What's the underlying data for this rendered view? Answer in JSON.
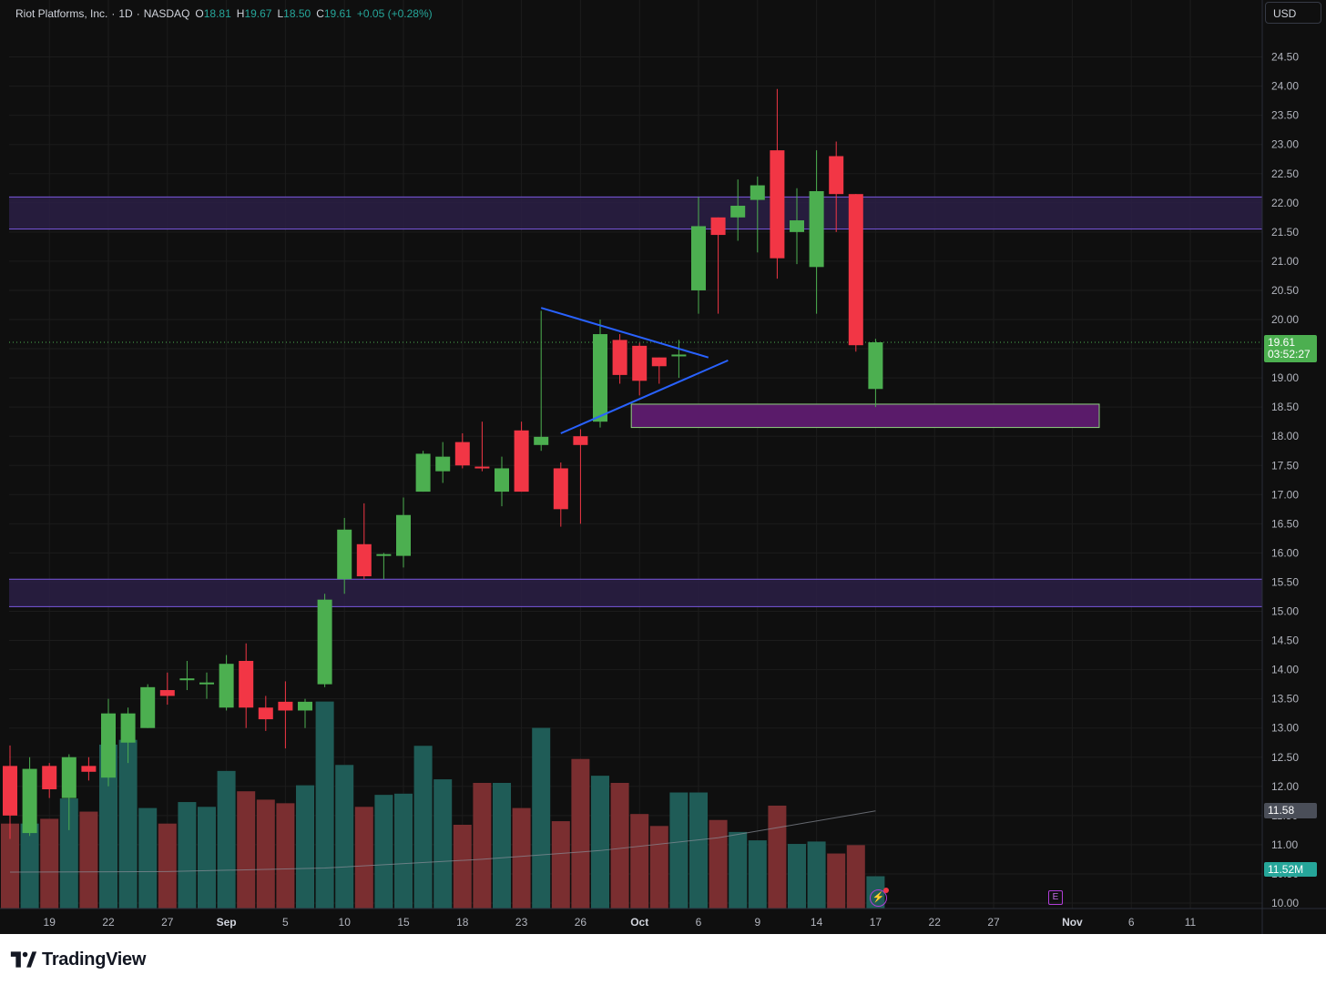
{
  "header": {
    "symbol": "Riot Platforms, Inc.",
    "interval": "1D",
    "exchange": "NASDAQ",
    "open_label": "O",
    "open": "18.81",
    "high_label": "H",
    "high": "19.67",
    "low_label": "L",
    "low": "18.50",
    "close_label": "C",
    "close": "19.61",
    "change": "+0.05 (+0.28%)"
  },
  "currency_button": "USD",
  "last_price_tag": {
    "price": "19.61",
    "countdown": "03:52:27"
  },
  "ma_tag": "11.58",
  "volume_tag": "11.52M",
  "events": {
    "earnings_icon": "E",
    "flash_icon": "lightning-icon"
  },
  "footer": {
    "brand": "TradingView",
    "logo_icon": "tradingview-logo-icon"
  },
  "colors": {
    "up_candle": "#4caf50",
    "down_candle": "#f23645",
    "up_volume": "#1f5c57",
    "down_volume": "#7a2e30",
    "zone_fill": "#2a1f45",
    "zone_line": "#7b58e0",
    "support_box": "#5a1b6a",
    "trendline": "#2962ff",
    "background": "#0f0f0f"
  },
  "chart_data": {
    "type": "candlestick",
    "title": "Riot Platforms, Inc. · 1D · NASDAQ",
    "y_axis": {
      "range": [
        10.0,
        25.0
      ],
      "ticks": [
        "10.00",
        "10.50",
        "11.00",
        "11.50",
        "12.00",
        "12.50",
        "13.00",
        "13.50",
        "14.00",
        "14.50",
        "15.00",
        "15.50",
        "16.00",
        "16.50",
        "17.00",
        "17.50",
        "18.00",
        "18.50",
        "19.00",
        "19.50",
        "20.00",
        "20.50",
        "21.00",
        "21.50",
        "22.00",
        "22.50",
        "23.00",
        "23.50",
        "24.00",
        "24.50"
      ]
    },
    "x_axis": {
      "ticks": [
        {
          "label": "19",
          "bold": false
        },
        {
          "label": "22",
          "bold": false
        },
        {
          "label": "27",
          "bold": false
        },
        {
          "label": "Sep",
          "bold": true
        },
        {
          "label": "5",
          "bold": false
        },
        {
          "label": "10",
          "bold": false
        },
        {
          "label": "15",
          "bold": false
        },
        {
          "label": "18",
          "bold": false
        },
        {
          "label": "23",
          "bold": false
        },
        {
          "label": "26",
          "bold": false
        },
        {
          "label": "Oct",
          "bold": true
        },
        {
          "label": "6",
          "bold": false
        },
        {
          "label": "9",
          "bold": false
        },
        {
          "label": "14",
          "bold": false
        },
        {
          "label": "17",
          "bold": false
        },
        {
          "label": "22",
          "bold": false
        },
        {
          "label": "27",
          "bold": false
        },
        {
          "label": "Nov",
          "bold": true
        },
        {
          "label": "6",
          "bold": false
        },
        {
          "label": "11",
          "bold": false
        }
      ]
    },
    "volume_scale_max": 17.5,
    "candles": [
      {
        "o": 12.35,
        "h": 12.7,
        "l": 11.1,
        "c": 11.5,
        "v": 7.1
      },
      {
        "o": 11.2,
        "h": 12.5,
        "l": 11.15,
        "c": 12.3,
        "v": 7.1
      },
      {
        "o": 12.35,
        "h": 12.4,
        "l": 11.8,
        "c": 11.95,
        "v": 7.5
      },
      {
        "o": 11.8,
        "h": 12.55,
        "l": 11.25,
        "c": 12.5,
        "v": 9.2
      },
      {
        "o": 12.35,
        "h": 12.5,
        "l": 12.1,
        "c": 12.25,
        "v": 8.1
      },
      {
        "o": 12.15,
        "h": 13.5,
        "l": 12.0,
        "c": 13.25,
        "v": 13.7
      },
      {
        "o": 12.75,
        "h": 13.35,
        "l": 12.4,
        "c": 13.25,
        "v": 14.1
      },
      {
        "o": 13.0,
        "h": 13.75,
        "l": 13.0,
        "c": 13.7,
        "v": 8.4
      },
      {
        "o": 13.65,
        "h": 13.95,
        "l": 13.4,
        "c": 13.55,
        "v": 7.1
      },
      {
        "o": 13.85,
        "h": 14.15,
        "l": 13.65,
        "c": 13.85,
        "v": 8.9
      },
      {
        "o": 13.75,
        "h": 13.95,
        "l": 13.5,
        "c": 13.78,
        "v": 8.5
      },
      {
        "o": 13.35,
        "h": 14.25,
        "l": 13.3,
        "c": 14.1,
        "v": 11.5
      },
      {
        "o": 14.15,
        "h": 14.45,
        "l": 13.0,
        "c": 13.35,
        "v": 9.8
      },
      {
        "o": 13.35,
        "h": 13.55,
        "l": 12.95,
        "c": 13.15,
        "v": 9.1
      },
      {
        "o": 13.45,
        "h": 13.8,
        "l": 12.65,
        "c": 13.3,
        "v": 8.8
      },
      {
        "o": 13.3,
        "h": 13.5,
        "l": 13.0,
        "c": 13.45,
        "v": 10.3
      },
      {
        "o": 13.75,
        "h": 15.3,
        "l": 13.7,
        "c": 15.2,
        "v": 17.3
      },
      {
        "o": 15.55,
        "h": 16.6,
        "l": 15.3,
        "c": 16.4,
        "v": 12.0
      },
      {
        "o": 16.15,
        "h": 16.85,
        "l": 15.55,
        "c": 15.6,
        "v": 8.5
      },
      {
        "o": 15.95,
        "h": 16.0,
        "l": 15.55,
        "c": 15.98,
        "v": 9.5
      },
      {
        "o": 15.95,
        "h": 16.95,
        "l": 15.75,
        "c": 16.65,
        "v": 9.6
      },
      {
        "o": 17.05,
        "h": 17.75,
        "l": 17.05,
        "c": 17.7,
        "v": 13.6
      },
      {
        "o": 17.4,
        "h": 17.9,
        "l": 17.2,
        "c": 17.65,
        "v": 10.8
      },
      {
        "o": 17.9,
        "h": 18.05,
        "l": 17.45,
        "c": 17.5,
        "v": 7.0
      },
      {
        "o": 17.48,
        "h": 18.25,
        "l": 17.4,
        "c": 17.45,
        "v": 10.5
      },
      {
        "o": 17.05,
        "h": 17.65,
        "l": 16.8,
        "c": 17.45,
        "v": 10.5
      },
      {
        "o": 18.1,
        "h": 18.25,
        "l": 17.05,
        "c": 17.05,
        "v": 8.4
      },
      {
        "o": 17.85,
        "h": 20.15,
        "l": 17.75,
        "c": 17.99,
        "v": 15.1
      },
      {
        "o": 17.45,
        "h": 17.55,
        "l": 16.45,
        "c": 16.75,
        "v": 7.3
      },
      {
        "o": 18.0,
        "h": 18.12,
        "l": 16.5,
        "c": 17.85,
        "v": 12.5
      },
      {
        "o": 18.25,
        "h": 20.0,
        "l": 18.15,
        "c": 19.75,
        "v": 11.1
      },
      {
        "o": 19.65,
        "h": 19.75,
        "l": 18.9,
        "c": 19.05,
        "v": 10.5
      },
      {
        "o": 19.55,
        "h": 19.6,
        "l": 18.7,
        "c": 18.95,
        "v": 7.9
      },
      {
        "o": 19.35,
        "h": 19.35,
        "l": 18.9,
        "c": 19.2,
        "v": 6.9
      },
      {
        "o": 19.38,
        "h": 19.65,
        "l": 19.0,
        "c": 19.4,
        "v": 9.7
      },
      {
        "o": 20.5,
        "h": 22.1,
        "l": 20.1,
        "c": 21.6,
        "v": 9.7
      },
      {
        "o": 21.75,
        "h": 21.75,
        "l": 20.1,
        "c": 21.45,
        "v": 7.4
      },
      {
        "o": 21.75,
        "h": 22.4,
        "l": 21.35,
        "c": 21.95,
        "v": 6.4
      },
      {
        "o": 22.05,
        "h": 22.45,
        "l": 21.15,
        "c": 22.3,
        "v": 5.7
      },
      {
        "o": 22.9,
        "h": 23.95,
        "l": 20.7,
        "c": 21.05,
        "v": 8.6
      },
      {
        "o": 21.5,
        "h": 22.25,
        "l": 20.95,
        "c": 21.7,
        "v": 5.4
      },
      {
        "o": 20.9,
        "h": 22.9,
        "l": 20.1,
        "c": 22.2,
        "v": 5.6
      },
      {
        "o": 22.8,
        "h": 23.05,
        "l": 21.5,
        "c": 22.15,
        "v": 4.6
      },
      {
        "o": 22.15,
        "h": 22.15,
        "l": 19.45,
        "c": 19.56,
        "v": 5.3
      },
      {
        "o": 18.81,
        "h": 19.67,
        "l": 18.5,
        "c": 19.61,
        "v": 2.7
      }
    ],
    "volume_ma": [
      {
        "bar": 0,
        "value": 10.53
      },
      {
        "bar": 8,
        "value": 10.54
      },
      {
        "bar": 16,
        "value": 10.6
      },
      {
        "bar": 24,
        "value": 10.75
      },
      {
        "bar": 30,
        "value": 10.9
      },
      {
        "bar": 36,
        "value": 11.12
      },
      {
        "bar": 40,
        "value": 11.35
      },
      {
        "bar": 44,
        "value": 11.58
      }
    ],
    "resistance_zones": [
      {
        "top": 22.1,
        "bottom": 21.55
      },
      {
        "top": 15.55,
        "bottom": 15.08
      }
    ],
    "support_box": {
      "top": 18.55,
      "bottom": 18.15,
      "from_bar": 32,
      "to_bar": 55
    },
    "triangle": {
      "upper": {
        "from_bar": 27,
        "from_price": 20.2,
        "to_bar": 35.5,
        "to_price": 19.35
      },
      "lower": {
        "from_bar": 28,
        "from_price": 18.05,
        "to_bar": 36.5,
        "to_price": 19.3
      }
    },
    "last_price": 19.61
  }
}
